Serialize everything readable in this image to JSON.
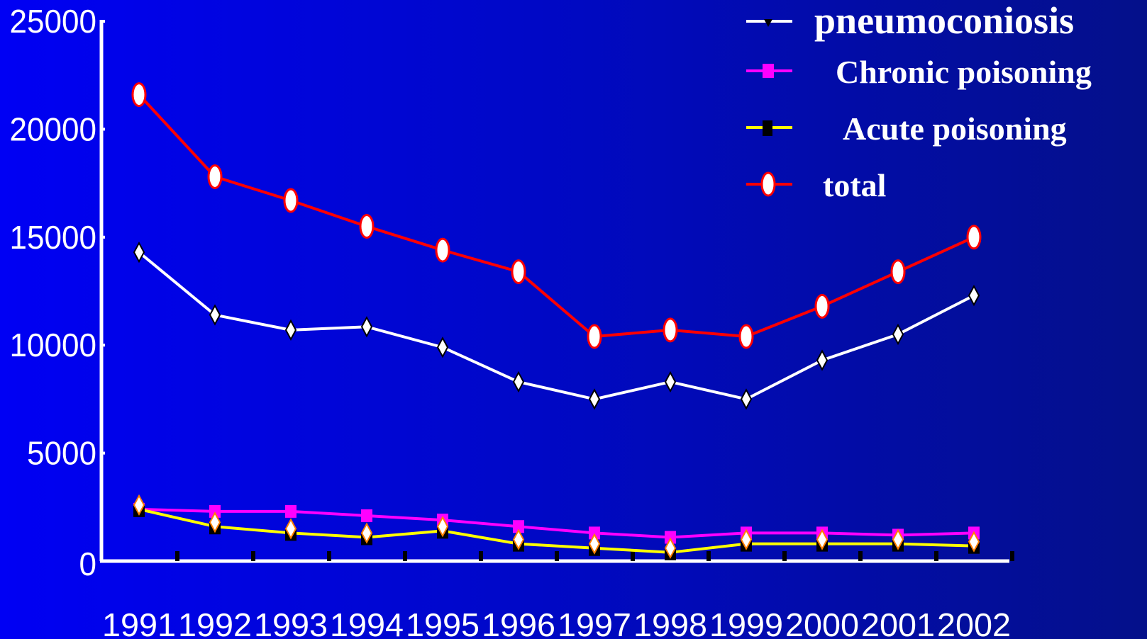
{
  "chart_data": {
    "type": "line",
    "categories": [
      "1991",
      "1992",
      "1993",
      "1994",
      "1995",
      "1996",
      "1997",
      "1998",
      "1999",
      "2000",
      "2001",
      "2002"
    ],
    "ylim": [
      0,
      25000
    ],
    "y_ticks": [
      "0",
      "5000",
      "10000",
      "15000",
      "20000",
      "25000"
    ],
    "grid": false,
    "legend_placement": "top-right",
    "series": [
      {
        "name": "pneumoconiosis",
        "color": "#ffffff",
        "marker": "diamond",
        "values": [
          14300,
          11400,
          10700,
          10850,
          9900,
          8300,
          7500,
          8300,
          7500,
          9300,
          10500,
          12300
        ]
      },
      {
        "name": "Chronic poisoning",
        "color": "#ff00ff",
        "marker": "square",
        "values": [
          2400,
          2300,
          2300,
          2100,
          1900,
          1600,
          1300,
          1100,
          1300,
          1300,
          1200,
          1300
        ]
      },
      {
        "name": "Acute poisoning",
        "color": "#ffff00",
        "marker": "square",
        "values": [
          2400,
          1600,
          1300,
          1100,
          1400,
          800,
          600,
          400,
          800,
          800,
          800,
          700
        ]
      },
      {
        "name": "total",
        "color": "#ff0000",
        "marker": "oval",
        "values": [
          21600,
          17800,
          16700,
          15500,
          14400,
          13400,
          10400,
          10700,
          10400,
          11800,
          13400,
          15000
        ]
      }
    ]
  }
}
